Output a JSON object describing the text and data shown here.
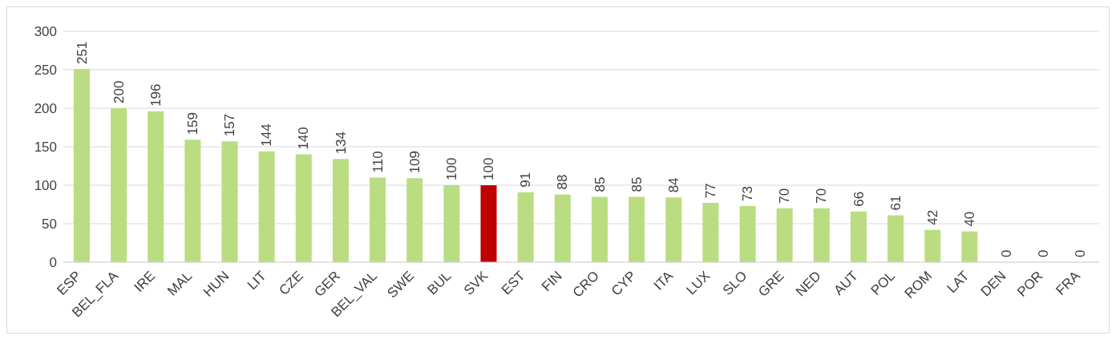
{
  "chart_data": {
    "type": "bar",
    "categories": [
      "ESP",
      "BEL_FLA",
      "IRE",
      "MAL",
      "HUN",
      "LIT",
      "CZE",
      "GER",
      "BEL_VAL",
      "SWE",
      "BUL",
      "SVK",
      "EST",
      "FIN",
      "CRO",
      "CYP",
      "ITA",
      "LUX",
      "SLO",
      "GRE",
      "NED",
      "AUT",
      "POL",
      "ROM",
      "LAT",
      "DEN",
      "POR",
      "FRA"
    ],
    "values": [
      251,
      200,
      196,
      159,
      157,
      144,
      140,
      134,
      110,
      109,
      100,
      100,
      91,
      88,
      85,
      85,
      84,
      77,
      73,
      70,
      70,
      66,
      61,
      42,
      40,
      0,
      0,
      0
    ],
    "colors": [
      "#b9dd80",
      "#b9dd80",
      "#b9dd80",
      "#b9dd80",
      "#b9dd80",
      "#b9dd80",
      "#b9dd80",
      "#b9dd80",
      "#b9dd80",
      "#b9dd80",
      "#b9dd80",
      "#c00000",
      "#b9dd80",
      "#b9dd80",
      "#b9dd80",
      "#b9dd80",
      "#b9dd80",
      "#b9dd80",
      "#b9dd80",
      "#b9dd80",
      "#b9dd80",
      "#b9dd80",
      "#b9dd80",
      "#b9dd80",
      "#b9dd80",
      "#b9dd80",
      "#b9dd80",
      "#b9dd80"
    ],
    "ylim": [
      0,
      300
    ],
    "yticks": [
      0,
      50,
      100,
      150,
      200,
      250,
      300
    ],
    "grid": "y",
    "data_labels": true
  }
}
